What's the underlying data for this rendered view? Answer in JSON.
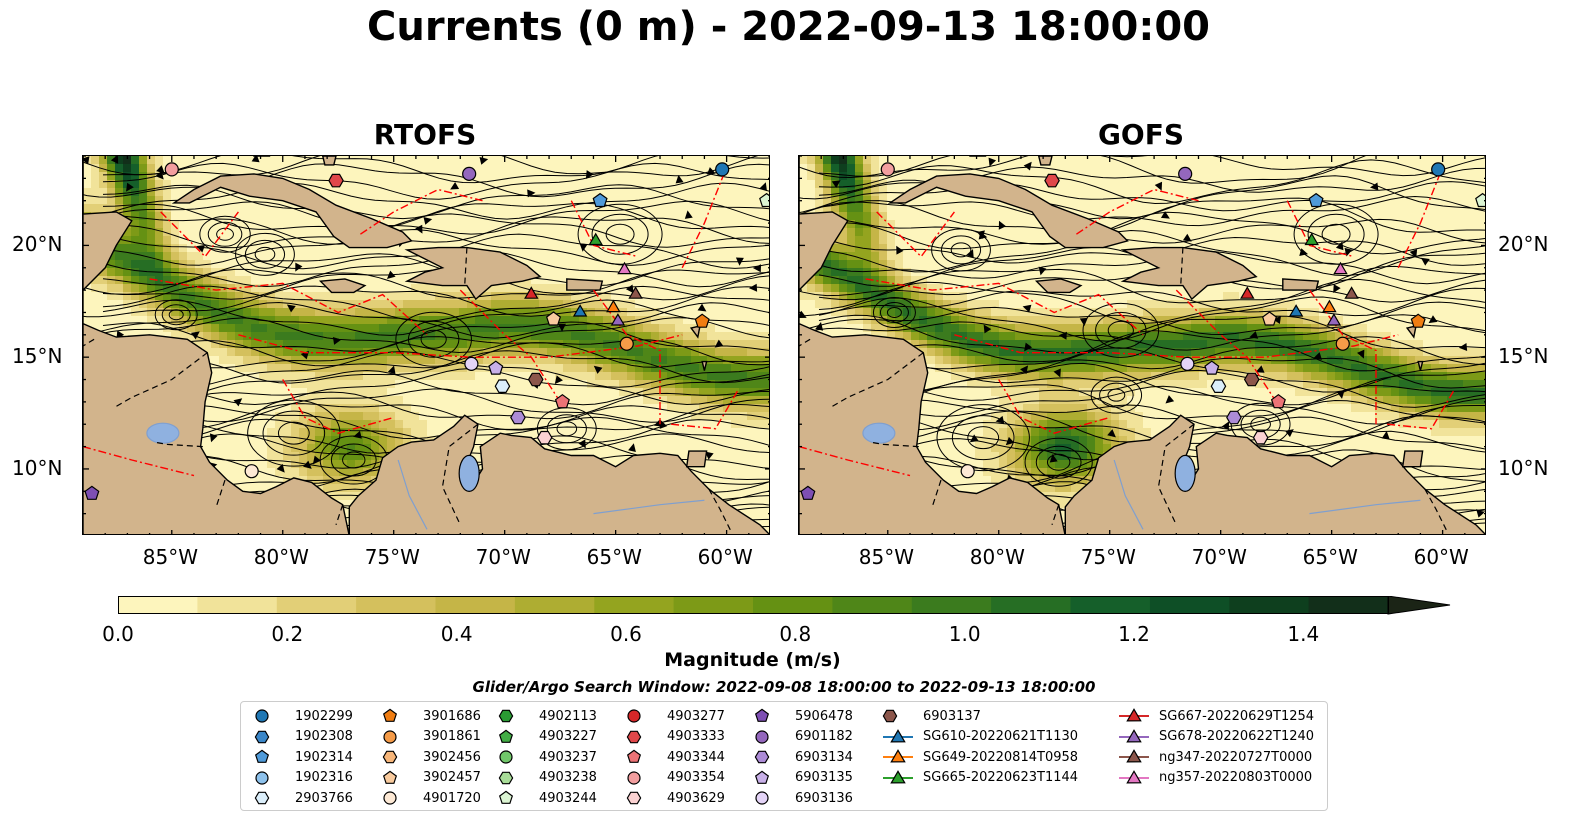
{
  "figure": {
    "title": "Currents (0 m) - 2022-09-13 18:00:00"
  },
  "panels": [
    {
      "title": "RTOFS"
    },
    {
      "title": "GOFS"
    }
  ],
  "axes": {
    "lon_ticks": [
      "85°W",
      "80°W",
      "75°W",
      "70°W",
      "65°W",
      "60°W"
    ],
    "lat_ticks": [
      "20°N",
      "15°N",
      "10°N"
    ]
  },
  "colorbar": {
    "label": "Magnitude (m/s)",
    "ticks": [
      "0.0",
      "0.2",
      "0.4",
      "0.6",
      "0.8",
      "1.0",
      "1.2",
      "1.4"
    ],
    "min": 0.0,
    "max": 1.5,
    "extend": "max",
    "colors": [
      "#fdf5bd",
      "#f1e39a",
      "#e2cf77",
      "#d4c05d",
      "#c5b547",
      "#aead32",
      "#94a41f",
      "#7d9a17",
      "#659113",
      "#4f8618",
      "#3b7b1e",
      "#266e24",
      "#155f2a",
      "#0e4f26",
      "#0e3f1e",
      "#122f1a",
      "#1b2416"
    ]
  },
  "search_window": {
    "text": "Glider/Argo Search Window: 2022-09-08 18:00:00 to 2022-09-13 18:00:00"
  },
  "legend": {
    "columns": [
      [
        {
          "label": "1902299",
          "marker": "circle",
          "color": "#1f77b4"
        },
        {
          "label": "1902308",
          "marker": "hexagon",
          "color": "#3a86c8"
        },
        {
          "label": "1902314",
          "marker": "pentagon",
          "color": "#4f9ad9"
        },
        {
          "label": "1902316",
          "marker": "circle",
          "color": "#8ec2ec"
        },
        {
          "label": "2903766",
          "marker": "hexagon",
          "color": "#dbeefa"
        }
      ],
      [
        {
          "label": "3901686",
          "marker": "pentagon",
          "color": "#f07d12"
        },
        {
          "label": "3901861",
          "marker": "circle",
          "color": "#f59b48"
        },
        {
          "label": "3902456",
          "marker": "hexagon",
          "color": "#f7b67a"
        },
        {
          "label": "3902457",
          "marker": "pentagon",
          "color": "#f9cb9e"
        },
        {
          "label": "4901720",
          "marker": "circle",
          "color": "#fde9d5"
        }
      ],
      [
        {
          "label": "4902113",
          "marker": "hexagon",
          "color": "#2a9a33"
        },
        {
          "label": "4903227",
          "marker": "pentagon",
          "color": "#42ad45"
        },
        {
          "label": "4903237",
          "marker": "circle",
          "color": "#71c76a"
        },
        {
          "label": "4903238",
          "marker": "hexagon",
          "color": "#a8dd98"
        },
        {
          "label": "4903244",
          "marker": "pentagon",
          "color": "#dcf5d3"
        }
      ],
      [
        {
          "label": "4903277",
          "marker": "circle",
          "color": "#d62728"
        },
        {
          "label": "4903333",
          "marker": "hexagon",
          "color": "#e0474a"
        },
        {
          "label": "4903344",
          "marker": "pentagon",
          "color": "#ec7376"
        },
        {
          "label": "4903354",
          "marker": "circle",
          "color": "#f29e9f"
        },
        {
          "label": "4903629",
          "marker": "hexagon",
          "color": "#fbd2d2"
        }
      ],
      [
        {
          "label": "5906478",
          "marker": "pentagon",
          "color": "#7e4fb3"
        },
        {
          "label": "6901182",
          "marker": "circle",
          "color": "#9467bd"
        },
        {
          "label": "6903134",
          "marker": "hexagon",
          "color": "#ac8bd6"
        },
        {
          "label": "6903135",
          "marker": "pentagon",
          "color": "#c8b0e8"
        },
        {
          "label": "6903136",
          "marker": "circle",
          "color": "#e4d4f7"
        }
      ],
      [
        {
          "label": "6903137",
          "marker": "hexagon",
          "color": "#8c564b"
        },
        {
          "label": "SG610-20220621T1130",
          "marker": "triangle",
          "color": "#1f77b4"
        },
        {
          "label": "SG649-20220814T0958",
          "marker": "triangle",
          "color": "#ff7f0e"
        },
        {
          "label": "SG665-20220623T1144",
          "marker": "triangle",
          "color": "#2ca02c"
        }
      ],
      [
        {
          "label": "SG667-20220629T1254",
          "marker": "triangle",
          "color": "#d62728"
        },
        {
          "label": "SG678-20220622T1240",
          "marker": "triangle",
          "color": "#9467bd"
        },
        {
          "label": "ng347-20220727T0000",
          "marker": "triangle",
          "color": "#8c564b"
        },
        {
          "label": "ng357-20220803T0000",
          "marker": "triangle",
          "color": "#e377c2"
        }
      ]
    ]
  },
  "map": {
    "extent": {
      "lon": [
        -89,
        -58
      ],
      "lat": [
        7,
        24
      ]
    },
    "land_color": "#d2b48c",
    "lake_color": "#8fb1e0",
    "eez_color": "#ff0000",
    "streamline_color": "#000000"
  },
  "markers": [
    {
      "id": "1902299",
      "lon": -60.2,
      "lat": 23.4,
      "marker": "circle",
      "color": "#1f77b4"
    },
    {
      "id": "4903354",
      "lon": -85.0,
      "lat": 23.4,
      "marker": "circle",
      "color": "#f29e9f"
    },
    {
      "id": "6901182",
      "lon": -71.6,
      "lat": 23.2,
      "marker": "circle",
      "color": "#9467bd"
    },
    {
      "id": "4903333",
      "lon": -77.6,
      "lat": 22.9,
      "marker": "hexagon",
      "color": "#e0474a"
    },
    {
      "id": "1902314",
      "lon": -65.7,
      "lat": 22.0,
      "marker": "pentagon",
      "color": "#4f9ad9"
    },
    {
      "id": "4903244",
      "lon": -58.2,
      "lat": 22.0,
      "marker": "pentagon",
      "color": "#dcf5d3"
    },
    {
      "id": "SG665",
      "lon": -65.9,
      "lat": 20.2,
      "marker": "triangle",
      "color": "#2ca02c"
    },
    {
      "id": "ng357",
      "lon": -64.6,
      "lat": 18.9,
      "marker": "triangle",
      "color": "#e377c2"
    },
    {
      "id": "SG667",
      "lon": -68.8,
      "lat": 17.8,
      "marker": "triangle",
      "color": "#d62728"
    },
    {
      "id": "ng347",
      "lon": -64.1,
      "lat": 17.8,
      "marker": "triangle",
      "color": "#8c564b"
    },
    {
      "id": "SG649",
      "lon": -65.1,
      "lat": 17.2,
      "marker": "triangle",
      "color": "#ff7f0e"
    },
    {
      "id": "SG610",
      "lon": -66.6,
      "lat": 17.0,
      "marker": "triangle",
      "color": "#1f77b4"
    },
    {
      "id": "SG678",
      "lon": -64.9,
      "lat": 16.6,
      "marker": "triangle",
      "color": "#9467bd"
    },
    {
      "id": "3902457",
      "lon": -67.8,
      "lat": 16.7,
      "marker": "pentagon",
      "color": "#f9cb9e"
    },
    {
      "id": "3901686",
      "lon": -61.1,
      "lat": 16.6,
      "marker": "pentagon",
      "color": "#f07d12"
    },
    {
      "id": "3901861",
      "lon": -64.5,
      "lat": 15.6,
      "marker": "circle",
      "color": "#f59b48"
    },
    {
      "id": "6903136",
      "lon": -71.5,
      "lat": 14.7,
      "marker": "circle",
      "color": "#e4d4f7"
    },
    {
      "id": "6903135",
      "lon": -70.4,
      "lat": 14.5,
      "marker": "pentagon",
      "color": "#c8b0e8"
    },
    {
      "id": "6903137",
      "lon": -68.6,
      "lat": 14.0,
      "marker": "hexagon",
      "color": "#8c564b"
    },
    {
      "id": "2903766",
      "lon": -70.1,
      "lat": 13.7,
      "marker": "hexagon",
      "color": "#dbeefa"
    },
    {
      "id": "4903344",
      "lon": -67.4,
      "lat": 13.0,
      "marker": "pentagon",
      "color": "#ec7376"
    },
    {
      "id": "6903134",
      "lon": -69.4,
      "lat": 12.3,
      "marker": "hexagon",
      "color": "#ac8bd6"
    },
    {
      "id": "4903629",
      "lon": -68.2,
      "lat": 11.4,
      "marker": "hexagon",
      "color": "#fbd2d2"
    },
    {
      "id": "4901720",
      "lon": -81.4,
      "lat": 9.9,
      "marker": "circle",
      "color": "#fde9d5"
    },
    {
      "id": "5906478",
      "lon": -88.6,
      "lat": 8.9,
      "marker": "pentagon",
      "color": "#7e4fb3"
    }
  ]
}
